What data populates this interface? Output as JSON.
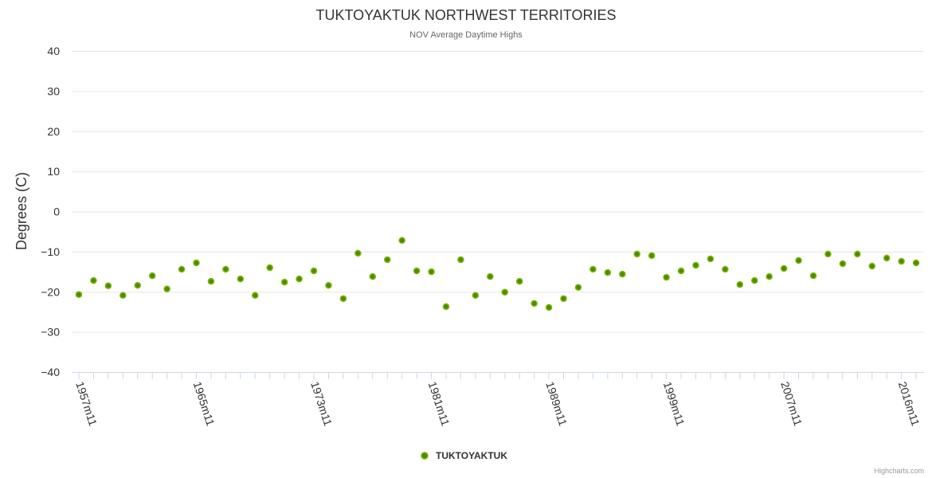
{
  "chart_data": {
    "type": "scatter",
    "title": "TUKTOYAKTUK NORTHWEST TERRITORIES",
    "subtitle": "NOV Average Daytime Highs",
    "xlabel": "",
    "ylabel": "Degrees (C)",
    "ylim": [
      -40,
      40
    ],
    "yticks": [
      40,
      30,
      20,
      10,
      0,
      -10,
      -20,
      -30,
      -40
    ],
    "ytick_labels": [
      "40",
      "30",
      "20",
      "10",
      "0",
      "−10",
      "−20",
      "−30",
      "−40"
    ],
    "grid": true,
    "legend_position": "bottom-center",
    "xtick_labels": [
      {
        "index": 0,
        "label": "1957m11"
      },
      {
        "index": 8,
        "label": "1965m11"
      },
      {
        "index": 16,
        "label": "1973m11"
      },
      {
        "index": 24,
        "label": "1981m11"
      },
      {
        "index": 32,
        "label": "1989m11"
      },
      {
        "index": 40,
        "label": "1999m11"
      },
      {
        "index": 48,
        "label": "2007m11"
      },
      {
        "index": 56,
        "label": "2016m11"
      }
    ],
    "series": [
      {
        "name": "TUKTOYAKTUK",
        "color": "#4f8a00",
        "border_color": "#7ab800",
        "values": [
          -20.7,
          -17.2,
          -18.5,
          -20.9,
          -18.4,
          -16.0,
          -19.3,
          -14.4,
          -12.8,
          -17.4,
          -14.4,
          -16.8,
          -20.9,
          -14.0,
          -17.6,
          -16.8,
          -14.8,
          -18.4,
          -21.7,
          -10.4,
          -16.2,
          -12.0,
          -7.2,
          -14.8,
          -15.0,
          -23.7,
          -12.0,
          -20.9,
          -16.2,
          -20.1,
          -17.4,
          -22.9,
          -23.9,
          -21.7,
          -18.9,
          -14.4,
          -15.2,
          -15.6,
          -10.6,
          -11.0,
          -16.4,
          -14.8,
          -13.4,
          -11.8,
          -14.4,
          -18.2,
          -17.2,
          -16.2,
          -14.2,
          -12.2,
          -16.0,
          -10.6,
          -13.0,
          -10.6,
          -13.6,
          -11.6,
          -12.4,
          -12.8
        ]
      }
    ]
  },
  "credits": "Highcharts.com"
}
